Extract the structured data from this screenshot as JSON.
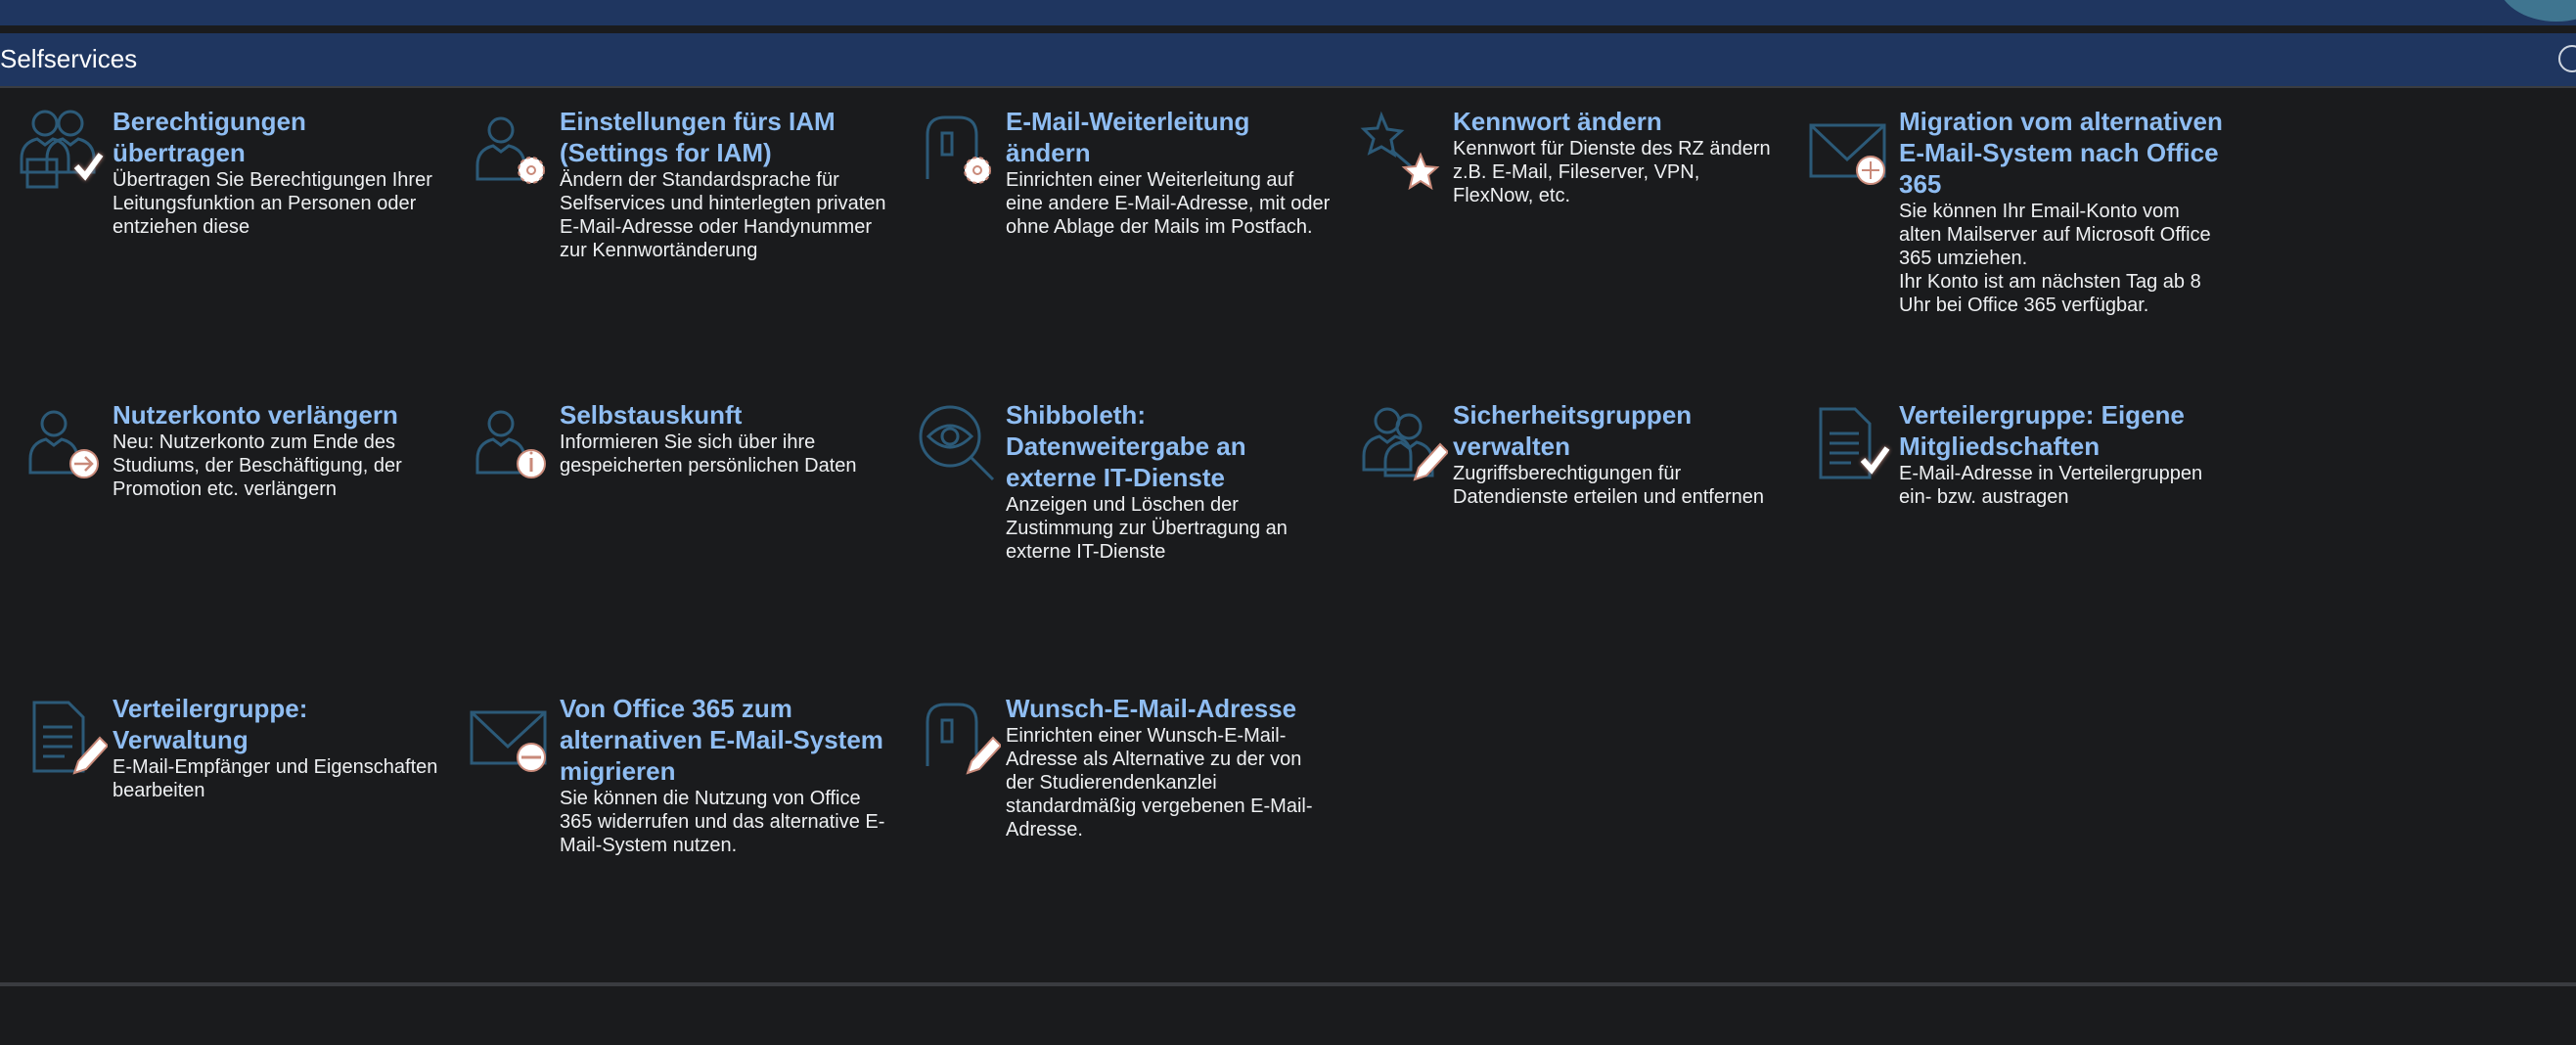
{
  "header": {
    "title": "Selfservices"
  },
  "colors": {
    "header_bg": "#1f3660",
    "title_text": "#8fbdf2",
    "icon_stroke": "#2c5a78",
    "page_bg": "#1a1b1d"
  },
  "tiles": [
    {
      "icon": "users-check-icon",
      "title": "Berechtigungen übertragen",
      "desc": "Übertragen Sie Berechtigungen Ihrer Leitungsfunktion an Personen oder entziehen diese"
    },
    {
      "icon": "user-gear-icon",
      "title": "Einstellungen fürs IAM (Settings for IAM)",
      "desc": "Ändern der Standardsprache für Selfservices und hinterlegten privaten E-Mail-Adresse oder Handynummer zur Kennwortänderung"
    },
    {
      "icon": "mailbox-gear-icon",
      "title": "E-Mail-Weiterleitung ändern",
      "desc": "Einrichten einer Weiterleitung auf eine andere E-Mail-Adresse, mit oder ohne Ablage der Mails im Postfach."
    },
    {
      "icon": "stars-icon",
      "title": "Kennwort ändern",
      "desc": "Kennwort für Dienste des RZ ändern z.B. E-Mail, Fileserver, VPN, FlexNow, etc."
    },
    {
      "icon": "mail-plus-icon",
      "title": "Migration vom alternativen E-Mail-System nach Office 365",
      "desc": "Sie können Ihr Email-Konto vom alten Mailserver auf Microsoft Office 365 umziehen.",
      "desc2": "Ihr Konto ist am nächsten Tag ab 8 Uhr bei Office 365 verfügbar."
    },
    {
      "icon": "user-arrow-icon",
      "title": "Nutzerkonto verlängern",
      "desc": "Neu: Nutzerkonto zum Ende des Studiums, der Beschäftigung, der Promotion etc. verlängern"
    },
    {
      "icon": "user-info-icon",
      "title": "Selbstauskunft",
      "desc": "Informieren Sie sich über ihre gespeicherten persönlichen Daten"
    },
    {
      "icon": "eye-magnifier-icon",
      "title": "Shibboleth: Datenweitergabe an externe IT-Dienste",
      "desc": "Anzeigen und Löschen der Zustimmung zur Übertragung an externe IT-Dienste"
    },
    {
      "icon": "users-pencil-icon",
      "title": "Sicherheitsgruppen verwalten",
      "desc": "Zugriffsberechtigungen für Datendienste erteilen und entfernen"
    },
    {
      "icon": "list-check-icon",
      "title": "Verteilergruppe: Eigene Mitgliedschaften",
      "desc": "E-Mail-Adresse in Verteilergruppen ein- bzw. austragen"
    },
    {
      "icon": "list-pencil-icon",
      "title": "Verteilergruppe: Verwaltung",
      "desc": "E-Mail-Empfänger und Eigenschaften bearbeiten"
    },
    {
      "icon": "mail-minus-icon",
      "title": "Von Office 365 zum alternativen E-Mail-System migrieren",
      "desc": "Sie können die Nutzung von Office 365 widerrufen und das alternative E-Mail-System nutzen."
    },
    {
      "icon": "mailbox-pencil-icon",
      "title": "Wunsch-E-Mail-Adresse",
      "desc": "Einrichten einer Wunsch-E-Mail-Adresse als Alternative zu der von der Studierendenkanzlei standardmäßig vergebenen E-Mail-Adresse."
    }
  ]
}
